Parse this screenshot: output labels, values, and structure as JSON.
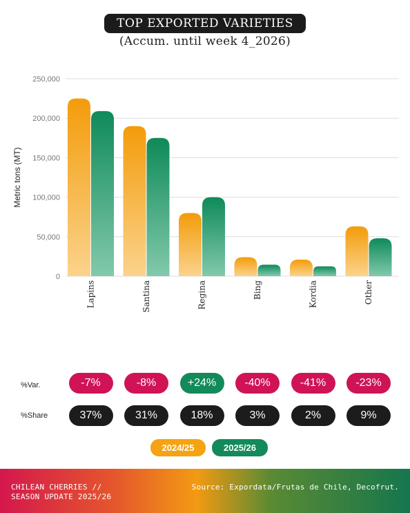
{
  "header": {
    "title": "TOP EXPORTED VARIETIES",
    "subtitle": "(Accum. until week 4_2026)"
  },
  "colors": {
    "season_2024_25": "#f5a313",
    "season_2025_26": "#138a5a",
    "negative": "#cf1356",
    "positive": "#138a5a",
    "share": "#1c1c1c"
  },
  "chart_data": {
    "type": "bar",
    "ylabel": "Metric tons (MT)",
    "xlabel": "",
    "ylim": [
      0,
      250000
    ],
    "yticks": [
      0,
      50000,
      100000,
      150000,
      200000,
      250000
    ],
    "ytick_labels": [
      "0",
      "50,000",
      "100,000",
      "150,000",
      "200,000",
      "250,000"
    ],
    "grid": true,
    "categories": [
      "Lapins",
      "Santina",
      "Regina",
      "Bing",
      "Kordia",
      "Other"
    ],
    "series": [
      {
        "name": "2024/25",
        "values": [
          225000,
          190000,
          80000,
          24000,
          21000,
          63000
        ]
      },
      {
        "name": "2025/26",
        "values": [
          209000,
          175000,
          100000,
          14500,
          12500,
          48000
        ]
      }
    ]
  },
  "stats": {
    "var_label": "%Var.",
    "share_label": "%Share",
    "var": [
      {
        "text": "-7%",
        "sign": "neg"
      },
      {
        "text": "-8%",
        "sign": "neg"
      },
      {
        "text": "+24%",
        "sign": "pos"
      },
      {
        "text": "-40%",
        "sign": "neg"
      },
      {
        "text": "-41%",
        "sign": "neg"
      },
      {
        "text": "-23%",
        "sign": "neg"
      }
    ],
    "share": [
      "37%",
      "31%",
      "18%",
      "3%",
      "2%",
      "9%"
    ]
  },
  "legend": {
    "items": [
      "2024/25",
      "2025/26"
    ]
  },
  "footer": {
    "left_line1": "CHILEAN CHERRIES //",
    "left_line2": "SEASON UPDATE 2025/26",
    "source": "Source: Expordata/Frutas de Chile, Decofrut."
  }
}
